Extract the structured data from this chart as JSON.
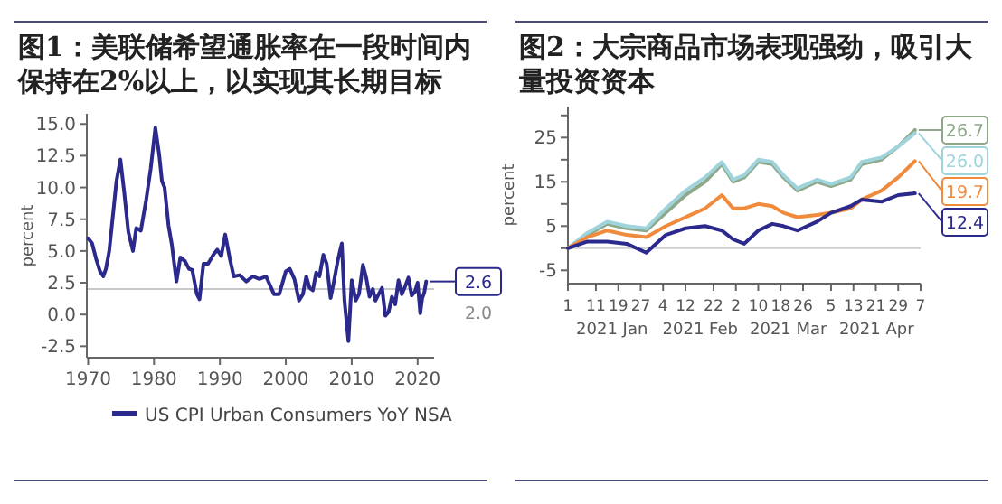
{
  "chart_data": [
    {
      "type": "line",
      "title": "图1：美联储希望通胀率在一段时间内保持在2%以上，以实现其长期目标",
      "ylabel": "percent",
      "xlim": [
        1969.8,
        2022.5
      ],
      "xticks": [
        1970,
        1980,
        1990,
        2000,
        2010,
        2020
      ],
      "ylim": [
        -3.4,
        15.8
      ],
      "yticks": [
        {
          "value": -2.5,
          "label": "-2.5"
        },
        {
          "value": 0,
          "label": "0.0"
        },
        {
          "value": 2.5,
          "label": "2.5"
        },
        {
          "value": 5,
          "label": "5.0"
        },
        {
          "value": 7.5,
          "label": "7.5"
        },
        {
          "value": 10,
          "label": "10.0"
        },
        {
          "value": 12.5,
          "label": "12.5"
        },
        {
          "value": 15,
          "label": "15.0"
        }
      ],
      "legend": "bottom",
      "grid": false,
      "ref_lines": [
        {
          "axis": "y",
          "value": 2.0,
          "label": "2.0",
          "color": "#c8c8c8"
        }
      ],
      "series": [
        {
          "name": "US CPI Urban Consumers YoY NSA",
          "color": "#2b2a8c",
          "x": [
            1970,
            1970.6,
            1971.2,
            1971.8,
            1972.3,
            1972.7,
            1973.2,
            1973.7,
            1974.3,
            1974.9,
            1975.5,
            1976.1,
            1976.8,
            1977.3,
            1978.0,
            1978.8,
            1979.5,
            1980.2,
            1980.8,
            1981.2,
            1981.6,
            1982.2,
            1982.7,
            1983.4,
            1984.0,
            1984.7,
            1985.3,
            1985.8,
            1986.5,
            1986.9,
            1987.5,
            1988.2,
            1989.0,
            1989.6,
            1990.2,
            1990.8,
            1991.5,
            1992.1,
            1993.0,
            1994.0,
            1995.0,
            1996.0,
            1997.0,
            1998.2,
            1999.0,
            2000.0,
            2000.6,
            2001.3,
            2002.0,
            2002.6,
            2003.1,
            2003.6,
            2004.1,
            2004.6,
            2005.1,
            2005.7,
            2006.2,
            2006.8,
            2007.3,
            2007.9,
            2008.5,
            2008.9,
            2009.5,
            2010.0,
            2010.6,
            2011.1,
            2011.7,
            2012.2,
            2012.7,
            2013.2,
            2013.6,
            2014.1,
            2014.6,
            2015.1,
            2015.6,
            2016.1,
            2016.6,
            2017.1,
            2017.6,
            2018.1,
            2018.6,
            2019.1,
            2019.6,
            2020.0,
            2020.4,
            2020.7,
            2021.0,
            2021.3
          ],
          "values": [
            6.0,
            5.6,
            4.4,
            3.4,
            3.0,
            3.6,
            5.0,
            7.5,
            10.5,
            12.2,
            9.5,
            6.5,
            5.0,
            6.8,
            6.6,
            9.0,
            11.5,
            14.7,
            12.5,
            10.5,
            10.0,
            7.0,
            5.5,
            2.6,
            4.5,
            4.2,
            3.6,
            3.5,
            1.6,
            1.2,
            4.0,
            4.0,
            4.7,
            5.1,
            4.6,
            6.3,
            4.4,
            3.0,
            3.1,
            2.6,
            3.0,
            2.8,
            3.0,
            1.6,
            1.6,
            3.4,
            3.6,
            2.8,
            1.1,
            1.6,
            3.0,
            2.1,
            1.9,
            3.3,
            3.0,
            4.7,
            4.0,
            1.3,
            2.6,
            4.3,
            5.6,
            1.1,
            -2.1,
            2.7,
            1.1,
            1.6,
            3.9,
            2.9,
            1.4,
            2.0,
            1.1,
            1.6,
            2.1,
            -0.1,
            0.2,
            1.4,
            0.8,
            2.7,
            1.6,
            2.2,
            2.9,
            1.5,
            1.8,
            2.5,
            0.1,
            1.3,
            1.7,
            2.6
          ],
          "value_labels": [
            null,
            null,
            null,
            null,
            null,
            null,
            null,
            null,
            null,
            null,
            null,
            null,
            null,
            null,
            null,
            null,
            null,
            null,
            null,
            null,
            null,
            null,
            null,
            null,
            null,
            null,
            null,
            null,
            null,
            null,
            null,
            null,
            null,
            null,
            null,
            null,
            null,
            null,
            null,
            null,
            null,
            null,
            null,
            null,
            null,
            null,
            null,
            null,
            null,
            null,
            null,
            null,
            null,
            null,
            null,
            null,
            null,
            null,
            null,
            null,
            null,
            null,
            null,
            null,
            null,
            null,
            null,
            null,
            null,
            null,
            null,
            null,
            null,
            null,
            null,
            null,
            null,
            null,
            null,
            null,
            null,
            null,
            null,
            null,
            null,
            null,
            null,
            "2.6"
          ]
        }
      ]
    },
    {
      "type": "line",
      "title": "图2：大宗商品市场表现强劲，吸引大量投资资本",
      "ylabel": "percent",
      "xlim": [
        "2021-01-01",
        "2021-05-07"
      ],
      "xticks": [
        {
          "value": "2021-01-01",
          "label": "1"
        },
        {
          "value": "2021-01-11",
          "label": "11"
        },
        {
          "value": "2021-01-19",
          "label": "19"
        },
        {
          "value": "2021-01-27",
          "label": "27"
        },
        {
          "value": "2021-02-04",
          "label": "4"
        },
        {
          "value": "2021-02-12",
          "label": "12"
        },
        {
          "value": "2021-02-22",
          "label": "22"
        },
        {
          "value": "2021-03-02",
          "label": "2"
        },
        {
          "value": "2021-03-10",
          "label": "10"
        },
        {
          "value": "2021-03-18",
          "label": "18"
        },
        {
          "value": "2021-03-26",
          "label": "26"
        },
        {
          "value": "2021-04-05",
          "label": "5"
        },
        {
          "value": "2021-04-13",
          "label": "13"
        },
        {
          "value": "2021-04-21",
          "label": "21"
        },
        {
          "value": "2021-04-29",
          "label": "29"
        },
        {
          "value": "2021-05-07",
          "label": "7"
        }
      ],
      "ylim": [
        -8,
        32
      ],
      "yticks": [
        {
          "value": -5,
          "label": "-5"
        },
        {
          "value": 0,
          "label": null
        },
        {
          "value": 5,
          "label": "5"
        },
        {
          "value": 10,
          "label": null
        },
        {
          "value": 15,
          "label": "15"
        },
        {
          "value": 20,
          "label": null
        },
        {
          "value": 25,
          "label": "25"
        },
        {
          "value": 30,
          "label": null
        }
      ],
      "legend": false,
      "grid": false,
      "ref_lines": [
        {
          "axis": "y",
          "value": 0,
          "color": "#d0d0d0"
        }
      ],
      "annotations": [
        "2021 Jan",
        "2021 Feb",
        "2021 Mar",
        "2021 Apr"
      ],
      "series": [
        {
          "color": "#8fa88a",
          "x": [
            "2021-01-01",
            "2021-01-08",
            "2021-01-15",
            "2021-01-22",
            "2021-01-29",
            "2021-02-05",
            "2021-02-12",
            "2021-02-19",
            "2021-02-25",
            "2021-03-01",
            "2021-03-05",
            "2021-03-10",
            "2021-03-15",
            "2021-03-19",
            "2021-03-24",
            "2021-03-31",
            "2021-04-05",
            "2021-04-12",
            "2021-04-16",
            "2021-04-23",
            "2021-04-29",
            "2021-05-05"
          ],
          "values": [
            0,
            3,
            5.5,
            4.5,
            4,
            8,
            12,
            15,
            19,
            15,
            16,
            19.5,
            19,
            16,
            13,
            15,
            14,
            15.5,
            19,
            20,
            23,
            26.7
          ],
          "value_labels": [
            null,
            null,
            null,
            null,
            null,
            null,
            null,
            null,
            null,
            null,
            null,
            null,
            null,
            null,
            null,
            null,
            null,
            null,
            null,
            null,
            null,
            "26.7"
          ]
        },
        {
          "color": "#9fd4dc",
          "x": [
            "2021-01-01",
            "2021-01-08",
            "2021-01-15",
            "2021-01-22",
            "2021-01-29",
            "2021-02-05",
            "2021-02-12",
            "2021-02-19",
            "2021-02-25",
            "2021-03-01",
            "2021-03-05",
            "2021-03-10",
            "2021-03-15",
            "2021-03-19",
            "2021-03-24",
            "2021-03-31",
            "2021-04-05",
            "2021-04-12",
            "2021-04-16",
            "2021-04-23",
            "2021-04-29",
            "2021-05-05"
          ],
          "values": [
            0,
            3.5,
            6,
            5,
            4.5,
            9,
            13,
            16,
            19.5,
            15.5,
            16.5,
            20,
            19.5,
            16.5,
            13.5,
            15.5,
            14.5,
            16,
            19.5,
            20.5,
            23,
            26.0
          ],
          "value_labels": [
            null,
            null,
            null,
            null,
            null,
            null,
            null,
            null,
            null,
            null,
            null,
            null,
            null,
            null,
            null,
            null,
            null,
            null,
            null,
            null,
            null,
            "26.0"
          ]
        },
        {
          "color": "#f08a3c",
          "x": [
            "2021-01-01",
            "2021-01-08",
            "2021-01-15",
            "2021-01-22",
            "2021-01-29",
            "2021-02-05",
            "2021-02-12",
            "2021-02-19",
            "2021-02-25",
            "2021-03-01",
            "2021-03-05",
            "2021-03-10",
            "2021-03-15",
            "2021-03-19",
            "2021-03-24",
            "2021-03-31",
            "2021-04-05",
            "2021-04-12",
            "2021-04-16",
            "2021-04-23",
            "2021-04-29",
            "2021-05-05"
          ],
          "values": [
            0,
            2.5,
            4,
            3,
            2.5,
            5,
            7,
            9,
            12,
            9,
            9,
            10,
            9.5,
            8,
            7,
            7.5,
            8,
            9,
            11,
            13,
            16,
            19.7
          ],
          "value_labels": [
            null,
            null,
            null,
            null,
            null,
            null,
            null,
            null,
            null,
            null,
            null,
            null,
            null,
            null,
            null,
            null,
            null,
            null,
            null,
            null,
            null,
            "19.7"
          ]
        },
        {
          "color": "#2b2a8c",
          "x": [
            "2021-01-01",
            "2021-01-08",
            "2021-01-15",
            "2021-01-22",
            "2021-01-29",
            "2021-02-05",
            "2021-02-12",
            "2021-02-19",
            "2021-02-25",
            "2021-03-01",
            "2021-03-05",
            "2021-03-10",
            "2021-03-15",
            "2021-03-19",
            "2021-03-24",
            "2021-03-31",
            "2021-04-05",
            "2021-04-12",
            "2021-04-16",
            "2021-04-23",
            "2021-04-29",
            "2021-05-05"
          ],
          "values": [
            0,
            1.5,
            1.5,
            1,
            -1,
            3,
            4.5,
            5,
            4,
            2,
            1,
            4,
            5.5,
            5,
            4,
            6,
            8,
            9.5,
            11,
            10.5,
            12,
            12.4
          ],
          "value_labels": [
            null,
            null,
            null,
            null,
            null,
            null,
            null,
            null,
            null,
            null,
            null,
            null,
            null,
            null,
            null,
            null,
            null,
            null,
            null,
            null,
            null,
            "12.4"
          ]
        }
      ]
    }
  ]
}
